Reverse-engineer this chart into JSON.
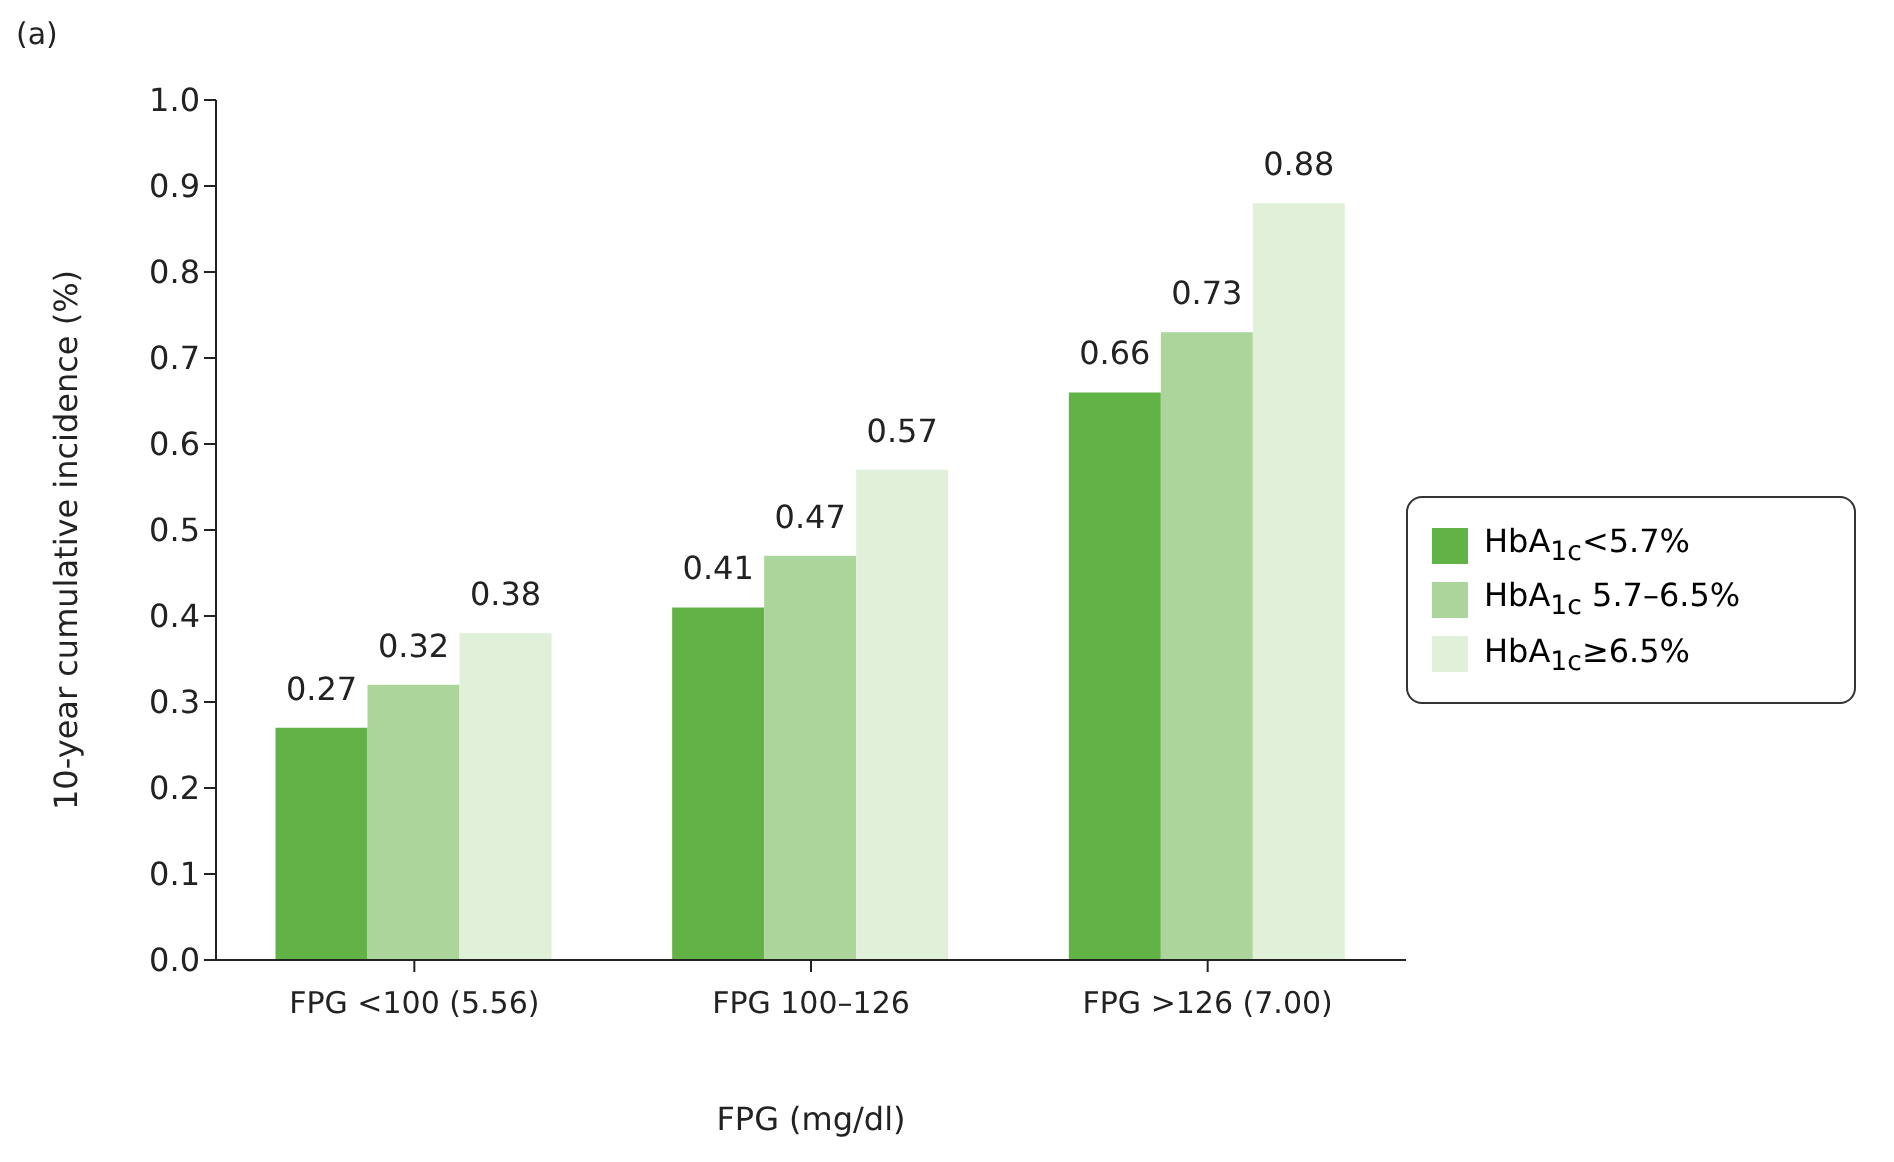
{
  "chart_data": {
    "type": "bar",
    "xlabel": "FPG (mg/dl)",
    "ylabel": "10-year cumulative incidence (%)",
    "annotations": [
      "(a)"
    ],
    "categories": [
      "FPG <100 (5.56)",
      "FPG 100–126",
      "FPG >126 (7.00)"
    ],
    "series": [
      {
        "name": "HbA$_{1c}$<5.7%",
        "color": "#62b346",
        "values": [
          0.27,
          0.41,
          0.66
        ]
      },
      {
        "name": "HbA$_{1c}$ 5.7–6.5%",
        "color": "#acd59b",
        "values": [
          0.32,
          0.47,
          0.73
        ]
      },
      {
        "name": "HbA$_{1c}$≥6.5%",
        "color": "#e0f0d9",
        "values": [
          0.38,
          0.57,
          0.88
        ]
      }
    ],
    "ylim": [
      0,
      1
    ],
    "yticks": [
      {
        "value": 0,
        "label": "0.0"
      },
      0.1,
      0.2,
      0.3,
      0.4,
      0.5,
      0.6,
      0.7,
      0.8,
      0.9,
      {
        "value": 1,
        "label": "1.0"
      }
    ],
    "grid": false,
    "legend": "right",
    "data_labels": true
  }
}
